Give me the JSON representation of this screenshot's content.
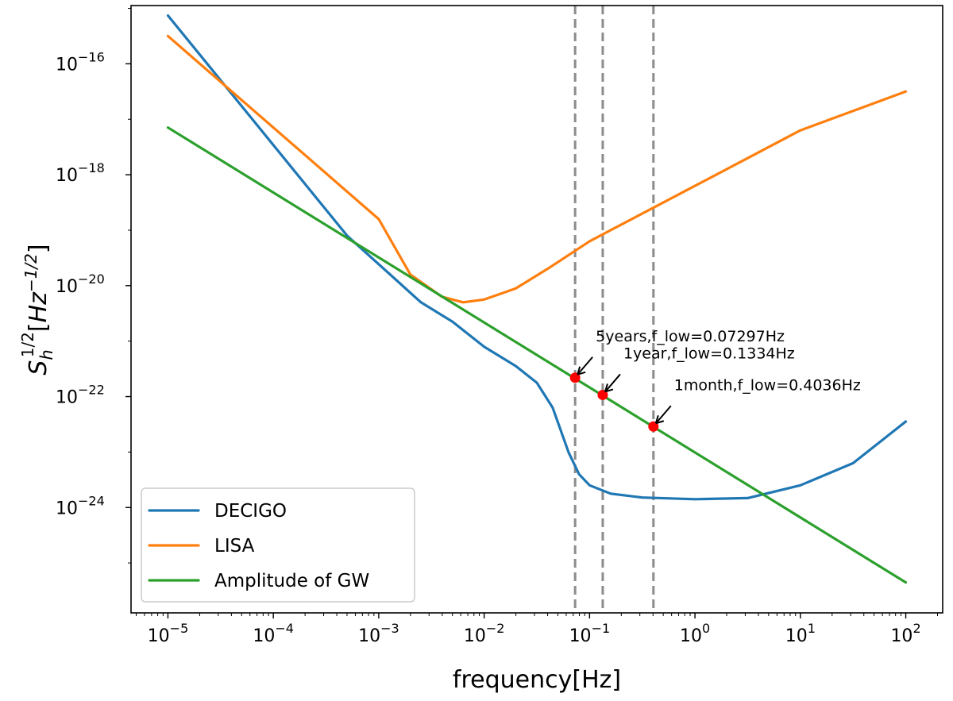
{
  "chart_data": {
    "type": "line",
    "xscale": "log",
    "yscale": "log",
    "xlabel": "frequency[Hz]",
    "ylabel": "S_h^{1/2}[Hz^{-1/2}]",
    "ylabel_parts": {
      "s": "S",
      "sub": "h",
      "sup": "1/2",
      "bracket_open": "[",
      "hz": "Hz",
      "unit_sup": "−1/2",
      "bracket_close": "]"
    },
    "xlim": [
      -5.35,
      2.35
    ],
    "ylim": [
      -25.9,
      -14.95
    ],
    "x_ticks": [
      {
        "exp": -5,
        "base": "10",
        "sup": "−5"
      },
      {
        "exp": -4,
        "base": "10",
        "sup": "−4"
      },
      {
        "exp": -3,
        "base": "10",
        "sup": "−3"
      },
      {
        "exp": -2,
        "base": "10",
        "sup": "−2"
      },
      {
        "exp": -1,
        "base": "10",
        "sup": "−1"
      },
      {
        "exp": 0,
        "base": "10",
        "sup": "0"
      },
      {
        "exp": 1,
        "base": "10",
        "sup": "1"
      },
      {
        "exp": 2,
        "base": "10",
        "sup": "2"
      }
    ],
    "y_ticks": [
      {
        "exp": -16,
        "base": "10",
        "sup": "−16"
      },
      {
        "exp": -18,
        "base": "10",
        "sup": "−18"
      },
      {
        "exp": -20,
        "base": "10",
        "sup": "−20"
      },
      {
        "exp": -22,
        "base": "10",
        "sup": "−22"
      },
      {
        "exp": -24,
        "base": "10",
        "sup": "−24"
      }
    ],
    "series": [
      {
        "name": "DECIGO",
        "color": "#1f77b4",
        "points_log10": [
          [
            -5,
            -15.13
          ],
          [
            -3.3,
            -19.1
          ],
          [
            -2.6,
            -20.3
          ],
          [
            -2.3,
            -20.65
          ],
          [
            -2,
            -21.1
          ],
          [
            -1.7,
            -21.45
          ],
          [
            -1.5,
            -21.75
          ],
          [
            -1.35,
            -22.2
          ],
          [
            -1.2,
            -23.0
          ],
          [
            -1.1,
            -23.4
          ],
          [
            -1,
            -23.6
          ],
          [
            -0.8,
            -23.75
          ],
          [
            -0.5,
            -23.82
          ],
          [
            0,
            -23.85
          ],
          [
            0.5,
            -23.83
          ],
          [
            1,
            -23.6
          ],
          [
            1.5,
            -23.2
          ],
          [
            2,
            -22.45
          ]
        ]
      },
      {
        "name": "LISA",
        "color": "#ff7f0e",
        "points_log10": [
          [
            -5,
            -15.5
          ],
          [
            -3.0,
            -18.8
          ],
          [
            -2.7,
            -19.8
          ],
          [
            -2.4,
            -20.2
          ],
          [
            -2.2,
            -20.3
          ],
          [
            -2.0,
            -20.25
          ],
          [
            -1.7,
            -20.05
          ],
          [
            -1.4,
            -19.7
          ],
          [
            -1.0,
            -19.2
          ],
          [
            0,
            -18.2
          ],
          [
            1,
            -17.2
          ],
          [
            2,
            -16.5
          ]
        ]
      },
      {
        "name": "Amplitude of GW",
        "color": "#2ca02c",
        "points_log10": [
          [
            -5,
            -17.15
          ],
          [
            2,
            -25.35
          ]
        ]
      }
    ],
    "vertical_lines_log10": [
      -1.137,
      -0.875,
      -0.394
    ],
    "markers": [
      {
        "label": "5years,f_low=0.07297Hz",
        "x_log10": -1.137,
        "y_log10": -21.66
      },
      {
        "label": "1year,f_low=0.1334Hz",
        "x_log10": -0.875,
        "y_log10": -21.97
      },
      {
        "label": "1month,f_low=0.4036Hz",
        "x_log10": -0.394,
        "y_log10": -22.54
      }
    ],
    "marker_color": "#ff0000",
    "legend": {
      "position": "lower-left",
      "entries": [
        "DECIGO",
        "LISA",
        "Amplitude of GW"
      ]
    }
  }
}
